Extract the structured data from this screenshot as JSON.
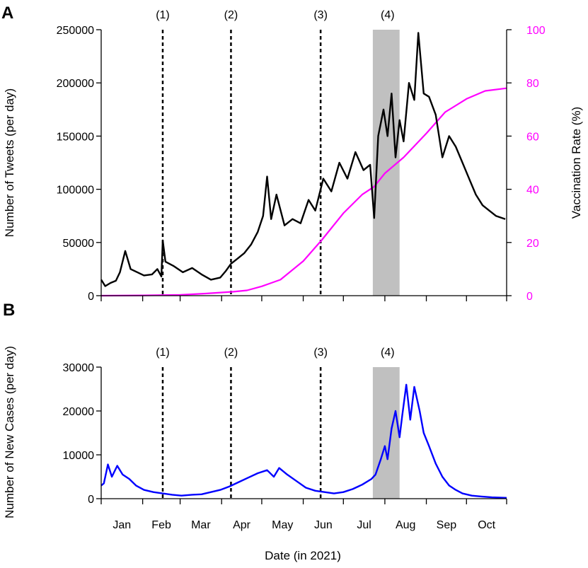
{
  "colors": {
    "tweets": "#000000",
    "vaccination": "#ff00ff",
    "cases": "#0000ff",
    "shade": "#c0c0c0"
  },
  "xlabel": "Date (in 2021)",
  "months": [
    "Jan",
    "Feb",
    "Mar",
    "Apr",
    "May",
    "Jun",
    "Jul",
    "Aug",
    "Sep",
    "Oct"
  ],
  "events": [
    "(1)",
    "(2)",
    "(3)",
    "(4)"
  ],
  "chart_data": [
    {
      "panel": "A",
      "type": "line",
      "xlabel": "Date (in 2021)",
      "ylabel": "Number of Tweets (per day)",
      "y2label": "Vaccination Rate (%)",
      "xlim": [
        "2021-01-01",
        "2021-10-31"
      ],
      "ylim": [
        0,
        250000
      ],
      "y2lim": [
        0,
        100
      ],
      "yticks": [
        "0",
        "50000",
        "100000",
        "150000",
        "200000",
        "250000"
      ],
      "y2ticks": [
        "0",
        "20",
        "40",
        "60",
        "80",
        "100"
      ],
      "event_lines": [
        {
          "label": "(1)",
          "date": "2021-02-16"
        },
        {
          "label": "(2)",
          "date": "2021-04-08"
        },
        {
          "label": "(3)",
          "date": "2021-06-14"
        }
      ],
      "shaded_period": {
        "label": "(4)",
        "start": "2021-07-23",
        "end": "2021-08-12"
      },
      "series": [
        {
          "name": "Tweets",
          "axis": "left",
          "color": "#000000",
          "points": [
            [
              "2021-01-01",
              15000
            ],
            [
              "2021-01-04",
              9000
            ],
            [
              "2021-01-08",
              12000
            ],
            [
              "2021-01-12",
              14000
            ],
            [
              "2021-01-15",
              22000
            ],
            [
              "2021-01-19",
              42000
            ],
            [
              "2021-01-23",
              25000
            ],
            [
              "2021-01-28",
              22000
            ],
            [
              "2021-02-02",
              19000
            ],
            [
              "2021-02-08",
              20000
            ],
            [
              "2021-02-12",
              25000
            ],
            [
              "2021-02-15",
              18000
            ],
            [
              "2021-02-16",
              52000
            ],
            [
              "2021-02-18",
              32000
            ],
            [
              "2021-02-24",
              28000
            ],
            [
              "2021-03-03",
              22000
            ],
            [
              "2021-03-10",
              26000
            ],
            [
              "2021-03-17",
              20000
            ],
            [
              "2021-03-24",
              15000
            ],
            [
              "2021-03-31",
              17000
            ],
            [
              "2021-04-04",
              23000
            ],
            [
              "2021-04-08",
              30000
            ],
            [
              "2021-04-13",
              35000
            ],
            [
              "2021-04-18",
              40000
            ],
            [
              "2021-04-23",
              48000
            ],
            [
              "2021-04-28",
              60000
            ],
            [
              "2021-05-02",
              75000
            ],
            [
              "2021-05-05",
              112000
            ],
            [
              "2021-05-08",
              72000
            ],
            [
              "2021-05-12",
              95000
            ],
            [
              "2021-05-18",
              66000
            ],
            [
              "2021-05-24",
              72000
            ],
            [
              "2021-05-30",
              68000
            ],
            [
              "2021-06-05",
              90000
            ],
            [
              "2021-06-10",
              80000
            ],
            [
              "2021-06-16",
              110000
            ],
            [
              "2021-06-22",
              98000
            ],
            [
              "2021-06-28",
              125000
            ],
            [
              "2021-07-04",
              110000
            ],
            [
              "2021-07-10",
              135000
            ],
            [
              "2021-07-16",
              118000
            ],
            [
              "2021-07-21",
              123000
            ],
            [
              "2021-07-24",
              73000
            ],
            [
              "2021-07-27",
              150000
            ],
            [
              "2021-07-31",
              175000
            ],
            [
              "2021-08-03",
              150000
            ],
            [
              "2021-08-06",
              190000
            ],
            [
              "2021-08-09",
              130000
            ],
            [
              "2021-08-12",
              165000
            ],
            [
              "2021-08-15",
              145000
            ],
            [
              "2021-08-19",
              200000
            ],
            [
              "2021-08-23",
              184000
            ],
            [
              "2021-08-26",
              247000
            ],
            [
              "2021-08-30",
              190000
            ],
            [
              "2021-09-03",
              187000
            ],
            [
              "2021-09-08",
              170000
            ],
            [
              "2021-09-13",
              130000
            ],
            [
              "2021-09-18",
              150000
            ],
            [
              "2021-09-23",
              140000
            ],
            [
              "2021-09-28",
              125000
            ],
            [
              "2021-10-03",
              110000
            ],
            [
              "2021-10-08",
              95000
            ],
            [
              "2021-10-13",
              85000
            ],
            [
              "2021-10-18",
              80000
            ],
            [
              "2021-10-23",
              75000
            ],
            [
              "2021-10-30",
              72000
            ]
          ]
        },
        {
          "name": "Vaccination Rate",
          "axis": "right",
          "color": "#ff00ff",
          "points": [
            [
              "2021-01-01",
              0
            ],
            [
              "2021-02-01",
              0.1
            ],
            [
              "2021-03-01",
              0.3
            ],
            [
              "2021-03-20",
              0.8
            ],
            [
              "2021-04-10",
              1.5
            ],
            [
              "2021-04-20",
              2
            ],
            [
              "2021-05-01",
              3.5
            ],
            [
              "2021-05-15",
              6
            ],
            [
              "2021-06-01",
              13
            ],
            [
              "2021-06-15",
              21
            ],
            [
              "2021-07-01",
              31
            ],
            [
              "2021-07-15",
              38
            ],
            [
              "2021-07-24",
              41
            ],
            [
              "2021-08-01",
              46
            ],
            [
              "2021-08-15",
              52
            ],
            [
              "2021-09-01",
              61
            ],
            [
              "2021-09-15",
              69
            ],
            [
              "2021-10-01",
              74
            ],
            [
              "2021-10-15",
              77
            ],
            [
              "2021-10-31",
              78
            ]
          ]
        }
      ]
    },
    {
      "panel": "B",
      "type": "line",
      "xlabel": "Date (in 2021)",
      "ylabel": "Number of New Cases (per day)",
      "xlim": [
        "2021-01-01",
        "2021-10-31"
      ],
      "ylim": [
        0,
        30000
      ],
      "yticks": [
        "0",
        "10000",
        "20000",
        "30000"
      ],
      "event_lines": [
        {
          "label": "(1)",
          "date": "2021-02-16"
        },
        {
          "label": "(2)",
          "date": "2021-04-08"
        },
        {
          "label": "(3)",
          "date": "2021-06-14"
        }
      ],
      "shaded_period": {
        "label": "(4)",
        "start": "2021-07-23",
        "end": "2021-08-12"
      },
      "series": [
        {
          "name": "New Cases",
          "color": "#0000ff",
          "points": [
            [
              "2021-01-01",
              3000
            ],
            [
              "2021-01-03",
              3500
            ],
            [
              "2021-01-06",
              7800
            ],
            [
              "2021-01-09",
              5000
            ],
            [
              "2021-01-13",
              7500
            ],
            [
              "2021-01-17",
              5500
            ],
            [
              "2021-01-22",
              4500
            ],
            [
              "2021-01-27",
              3000
            ],
            [
              "2021-02-02",
              2000
            ],
            [
              "2021-02-09",
              1500
            ],
            [
              "2021-02-16",
              1200
            ],
            [
              "2021-02-23",
              900
            ],
            [
              "2021-03-02",
              700
            ],
            [
              "2021-03-10",
              900
            ],
            [
              "2021-03-17",
              1000
            ],
            [
              "2021-03-24",
              1500
            ],
            [
              "2021-03-31",
              2000
            ],
            [
              "2021-04-07",
              2800
            ],
            [
              "2021-04-14",
              3800
            ],
            [
              "2021-04-21",
              4800
            ],
            [
              "2021-04-28",
              5800
            ],
            [
              "2021-05-05",
              6500
            ],
            [
              "2021-05-10",
              5000
            ],
            [
              "2021-05-14",
              7000
            ],
            [
              "2021-05-20",
              5500
            ],
            [
              "2021-05-27",
              4000
            ],
            [
              "2021-06-03",
              2500
            ],
            [
              "2021-06-10",
              1800
            ],
            [
              "2021-06-17",
              1500
            ],
            [
              "2021-06-24",
              1200
            ],
            [
              "2021-07-01",
              1500
            ],
            [
              "2021-07-08",
              2200
            ],
            [
              "2021-07-15",
              3200
            ],
            [
              "2021-07-22",
              4500
            ],
            [
              "2021-07-25",
              5500
            ],
            [
              "2021-07-29",
              9000
            ],
            [
              "2021-08-01",
              12000
            ],
            [
              "2021-08-03",
              9000
            ],
            [
              "2021-08-06",
              16000
            ],
            [
              "2021-08-09",
              20000
            ],
            [
              "2021-08-12",
              14000
            ],
            [
              "2021-08-14",
              19000
            ],
            [
              "2021-08-17",
              26000
            ],
            [
              "2021-08-20",
              18000
            ],
            [
              "2021-08-23",
              25500
            ],
            [
              "2021-08-27",
              20000
            ],
            [
              "2021-08-30",
              15000
            ],
            [
              "2021-09-03",
              12000
            ],
            [
              "2021-09-08",
              8000
            ],
            [
              "2021-09-13",
              5000
            ],
            [
              "2021-09-18",
              3000
            ],
            [
              "2021-09-23",
              2000
            ],
            [
              "2021-09-28",
              1200
            ],
            [
              "2021-10-05",
              700
            ],
            [
              "2021-10-12",
              500
            ],
            [
              "2021-10-20",
              300
            ],
            [
              "2021-10-31",
              200
            ]
          ]
        }
      ]
    }
  ]
}
